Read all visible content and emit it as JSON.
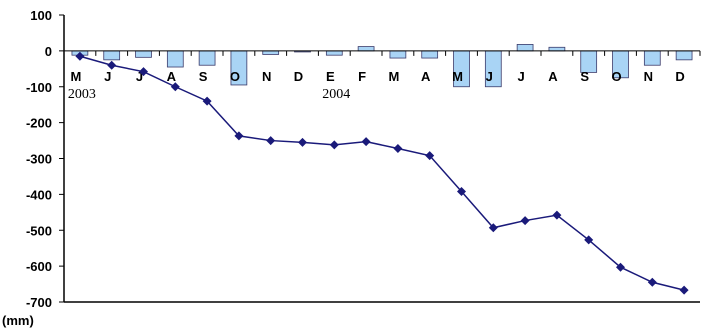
{
  "chart_data": {
    "type": "bar+line",
    "y_unit": "(mm)",
    "categories": [
      "M",
      "J",
      "J",
      "A",
      "S",
      "O",
      "N",
      "D",
      "E",
      "F",
      "M",
      "A",
      "M",
      "J",
      "J",
      "A",
      "S",
      "O",
      "N",
      "D"
    ],
    "year_labels": [
      {
        "index": 0,
        "text": "2003"
      },
      {
        "index": 8,
        "text": "2004"
      }
    ],
    "series": [
      {
        "type": "bar",
        "color": "#a9d4f5",
        "values": [
          -12,
          -25,
          -18,
          -45,
          -40,
          -95,
          -10,
          -3,
          -12,
          12,
          -20,
          -20,
          -100,
          -100,
          18,
          10,
          -60,
          -75,
          -40,
          -25
        ]
      },
      {
        "type": "line",
        "color": "#1a1a7a",
        "values": [
          -15,
          -40,
          -58,
          -100,
          -140,
          -237,
          -250,
          -255,
          -262,
          -253,
          -272,
          -292,
          -392,
          -493,
          -473,
          -458,
          -527,
          -603,
          -645,
          -667
        ]
      }
    ],
    "ylim": [
      -700,
      100
    ],
    "yticks": [
      100,
      0,
      -100,
      -200,
      -300,
      -400,
      -500,
      -600,
      -700
    ],
    "grid": false,
    "legend": "none"
  }
}
